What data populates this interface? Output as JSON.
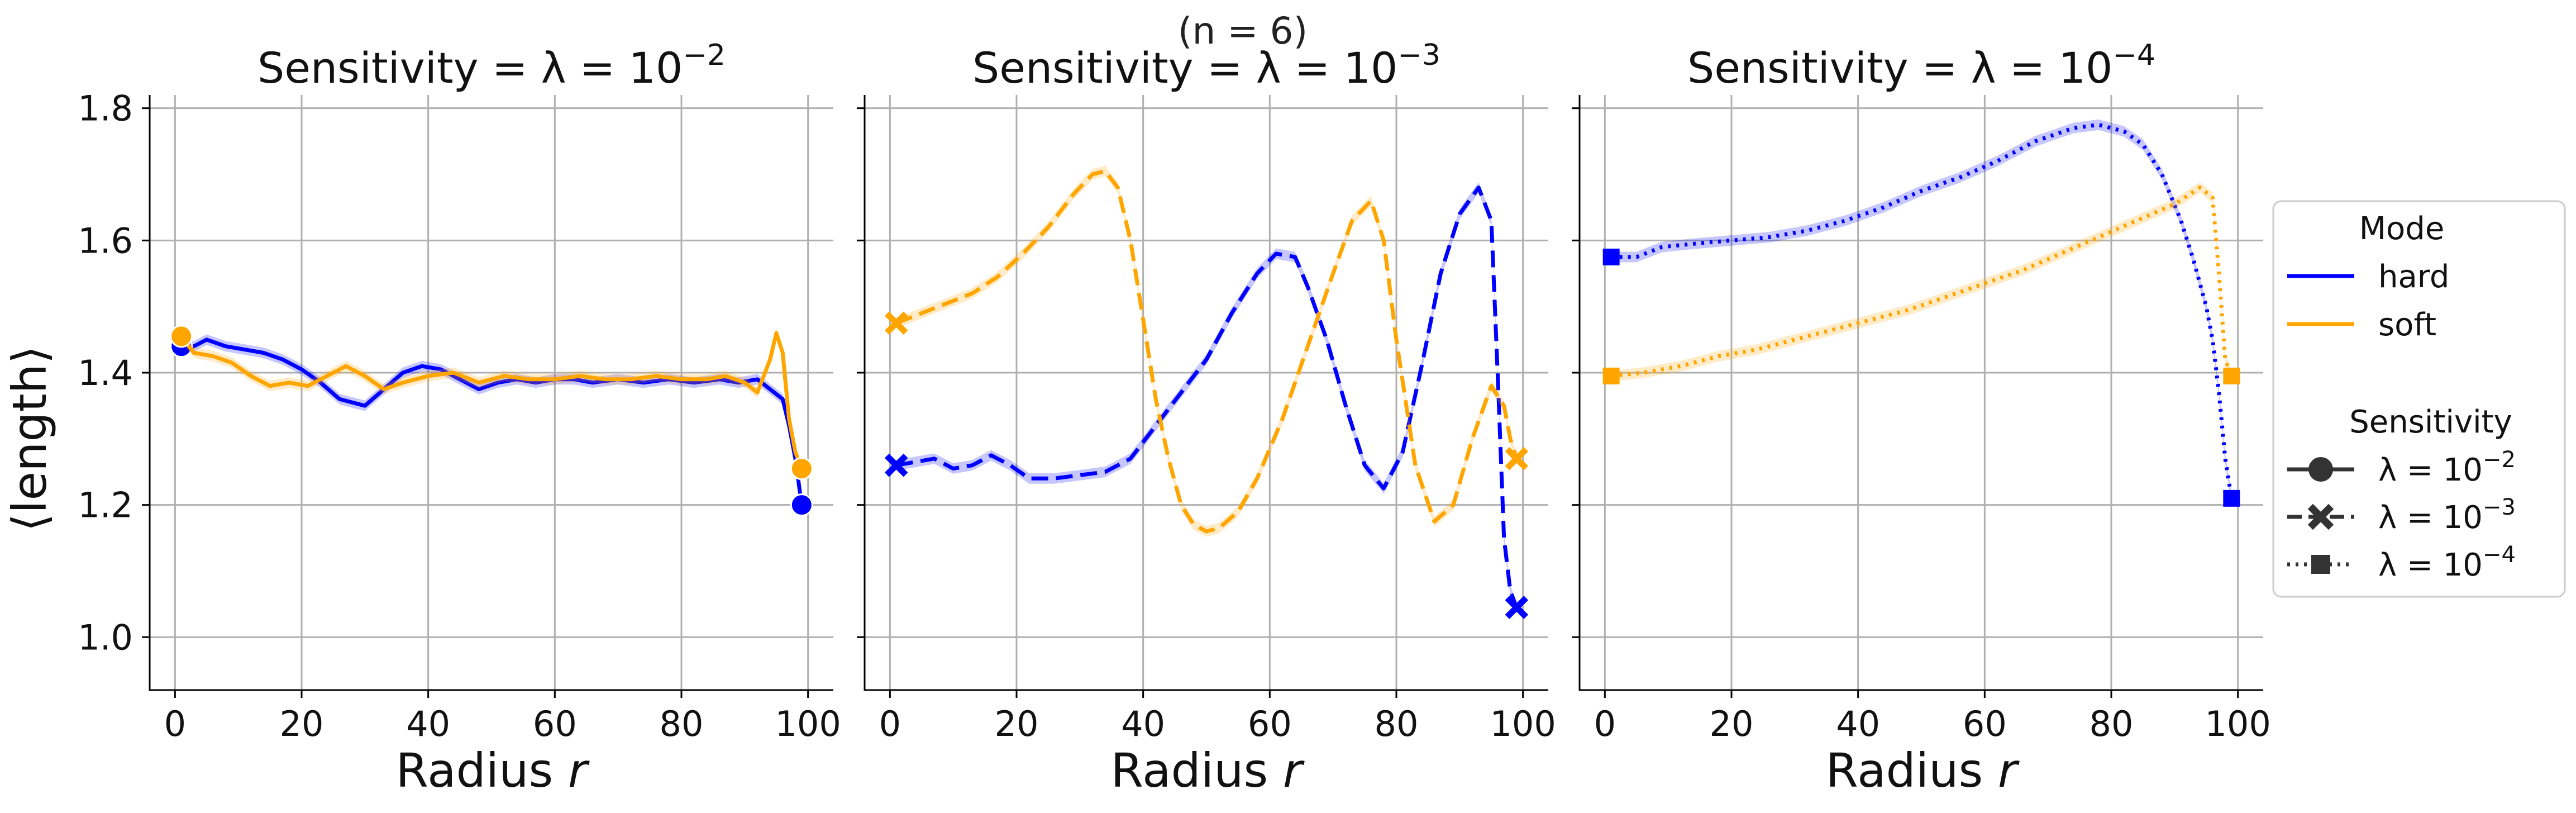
{
  "figure": {
    "suptitle": "(n = 6)",
    "ylabel": "⟨length⟩"
  },
  "legend": {
    "mode_title": "Mode",
    "mode_items": [
      {
        "label": "hard",
        "color": "#0000ff"
      },
      {
        "label": "soft",
        "color": "#ffa500"
      }
    ],
    "sens_title": "Sensitivity",
    "sens_items": [
      {
        "label": "λ = 10",
        "exp": "−2",
        "dash": "solid",
        "marker": "circle"
      },
      {
        "label": "λ = 10",
        "exp": "−3",
        "dash": "dashed",
        "marker": "x"
      },
      {
        "label": "λ = 10",
        "exp": "−4",
        "dash": "dotted",
        "marker": "square"
      }
    ]
  },
  "chart_data": [
    {
      "type": "line",
      "title": "Sensitivity = λ = 10",
      "title_exp": "−2",
      "xlabel": "Radius r",
      "ylabel": "⟨length⟩",
      "xlim": [
        -4,
        104
      ],
      "ylim": [
        0.92,
        1.82
      ],
      "xticks": [
        0,
        20,
        40,
        60,
        80,
        100
      ],
      "yticks": [
        1.0,
        1.2,
        1.4,
        1.6,
        1.8
      ],
      "grid": true,
      "line_style": "solid",
      "marker": "circle",
      "series": [
        {
          "name": "hard",
          "color": "#0000ff",
          "x": [
            1,
            3,
            5,
            8,
            11,
            14,
            17,
            20,
            23,
            26,
            30,
            33,
            36,
            39,
            42,
            45,
            48,
            51,
            54,
            57,
            60,
            63,
            66,
            70,
            74,
            78,
            82,
            86,
            89,
            92,
            94,
            96,
            97,
            98,
            99
          ],
          "y": [
            1.44,
            1.44,
            1.45,
            1.44,
            1.435,
            1.43,
            1.42,
            1.405,
            1.385,
            1.36,
            1.35,
            1.375,
            1.4,
            1.41,
            1.405,
            1.39,
            1.375,
            1.385,
            1.39,
            1.385,
            1.39,
            1.39,
            1.385,
            1.39,
            1.385,
            1.39,
            1.385,
            1.39,
            1.385,
            1.39,
            1.375,
            1.36,
            1.32,
            1.27,
            1.2
          ]
        },
        {
          "name": "soft",
          "color": "#ffa500",
          "x": [
            1,
            3,
            6,
            9,
            12,
            15,
            18,
            21,
            24,
            27,
            30,
            33,
            36,
            40,
            44,
            48,
            52,
            56,
            60,
            64,
            68,
            72,
            76,
            80,
            84,
            87,
            90,
            92,
            94,
            95,
            96,
            97,
            98,
            99
          ],
          "y": [
            1.455,
            1.43,
            1.425,
            1.415,
            1.395,
            1.38,
            1.385,
            1.38,
            1.395,
            1.41,
            1.395,
            1.375,
            1.385,
            1.395,
            1.4,
            1.385,
            1.395,
            1.39,
            1.39,
            1.395,
            1.39,
            1.39,
            1.395,
            1.39,
            1.39,
            1.395,
            1.385,
            1.37,
            1.42,
            1.46,
            1.43,
            1.33,
            1.28,
            1.255
          ]
        }
      ]
    },
    {
      "type": "line",
      "title": "Sensitivity = λ = 10",
      "title_exp": "−3",
      "xlabel": "Radius r",
      "ylabel": "",
      "xlim": [
        -4,
        104
      ],
      "ylim": [
        0.92,
        1.82
      ],
      "xticks": [
        0,
        20,
        40,
        60,
        80,
        100
      ],
      "yticks": [
        1.0,
        1.2,
        1.4,
        1.6,
        1.8
      ],
      "grid": true,
      "line_style": "dashed",
      "marker": "x",
      "series": [
        {
          "name": "hard",
          "color": "#0000ff",
          "x": [
            1,
            4,
            7,
            10,
            13,
            16,
            19,
            22,
            26,
            30,
            34,
            38,
            42,
            46,
            50,
            54,
            58,
            61,
            64,
            66,
            69,
            72,
            75,
            78,
            81,
            84,
            87,
            90,
            93,
            95,
            96,
            97,
            98,
            99
          ],
          "y": [
            1.26,
            1.265,
            1.27,
            1.255,
            1.26,
            1.275,
            1.26,
            1.24,
            1.24,
            1.245,
            1.25,
            1.27,
            1.32,
            1.37,
            1.42,
            1.49,
            1.55,
            1.58,
            1.575,
            1.53,
            1.45,
            1.35,
            1.26,
            1.225,
            1.28,
            1.41,
            1.55,
            1.64,
            1.68,
            1.63,
            1.4,
            1.15,
            1.07,
            1.045
          ]
        },
        {
          "name": "soft",
          "color": "#ffa500",
          "x": [
            1,
            5,
            9,
            13,
            17,
            21,
            25,
            29,
            32,
            34,
            36,
            38,
            40,
            42,
            44,
            46,
            48,
            50,
            52,
            55,
            58,
            62,
            66,
            70,
            73,
            76,
            78,
            80,
            83,
            86,
            89,
            92,
            95,
            97,
            98,
            99
          ],
          "y": [
            1.475,
            1.49,
            1.505,
            1.52,
            1.545,
            1.58,
            1.62,
            1.67,
            1.7,
            1.705,
            1.68,
            1.6,
            1.48,
            1.36,
            1.27,
            1.2,
            1.17,
            1.16,
            1.165,
            1.19,
            1.24,
            1.33,
            1.44,
            1.55,
            1.63,
            1.66,
            1.6,
            1.45,
            1.26,
            1.175,
            1.2,
            1.3,
            1.38,
            1.35,
            1.3,
            1.27
          ]
        }
      ]
    },
    {
      "type": "line",
      "title": "Sensitivity = λ = 10",
      "title_exp": "−4",
      "xlabel": "Radius r",
      "ylabel": "",
      "xlim": [
        -4,
        104
      ],
      "ylim": [
        0.92,
        1.82
      ],
      "xticks": [
        0,
        20,
        40,
        60,
        80,
        100
      ],
      "yticks": [
        1.0,
        1.2,
        1.4,
        1.6,
        1.8
      ],
      "grid": true,
      "line_style": "dotted",
      "marker": "square",
      "series": [
        {
          "name": "hard",
          "color": "#0000ff",
          "x": [
            1,
            5,
            9,
            14,
            20,
            26,
            32,
            38,
            44,
            50,
            56,
            62,
            68,
            74,
            78,
            82,
            85,
            88,
            91,
            93,
            95,
            96,
            97,
            98,
            99
          ],
          "y": [
            1.575,
            1.575,
            1.59,
            1.595,
            1.6,
            1.605,
            1.615,
            1.63,
            1.65,
            1.675,
            1.695,
            1.72,
            1.75,
            1.77,
            1.775,
            1.765,
            1.745,
            1.7,
            1.63,
            1.57,
            1.5,
            1.45,
            1.37,
            1.27,
            1.21
          ]
        },
        {
          "name": "soft",
          "color": "#ffa500",
          "x": [
            1,
            6,
            12,
            18,
            24,
            30,
            36,
            42,
            48,
            54,
            60,
            66,
            72,
            78,
            84,
            90,
            94,
            96,
            97,
            98,
            99
          ],
          "y": [
            1.395,
            1.4,
            1.41,
            1.425,
            1.435,
            1.45,
            1.465,
            1.48,
            1.495,
            1.515,
            1.535,
            1.555,
            1.58,
            1.605,
            1.63,
            1.655,
            1.68,
            1.665,
            1.55,
            1.42,
            1.395
          ]
        }
      ]
    }
  ]
}
